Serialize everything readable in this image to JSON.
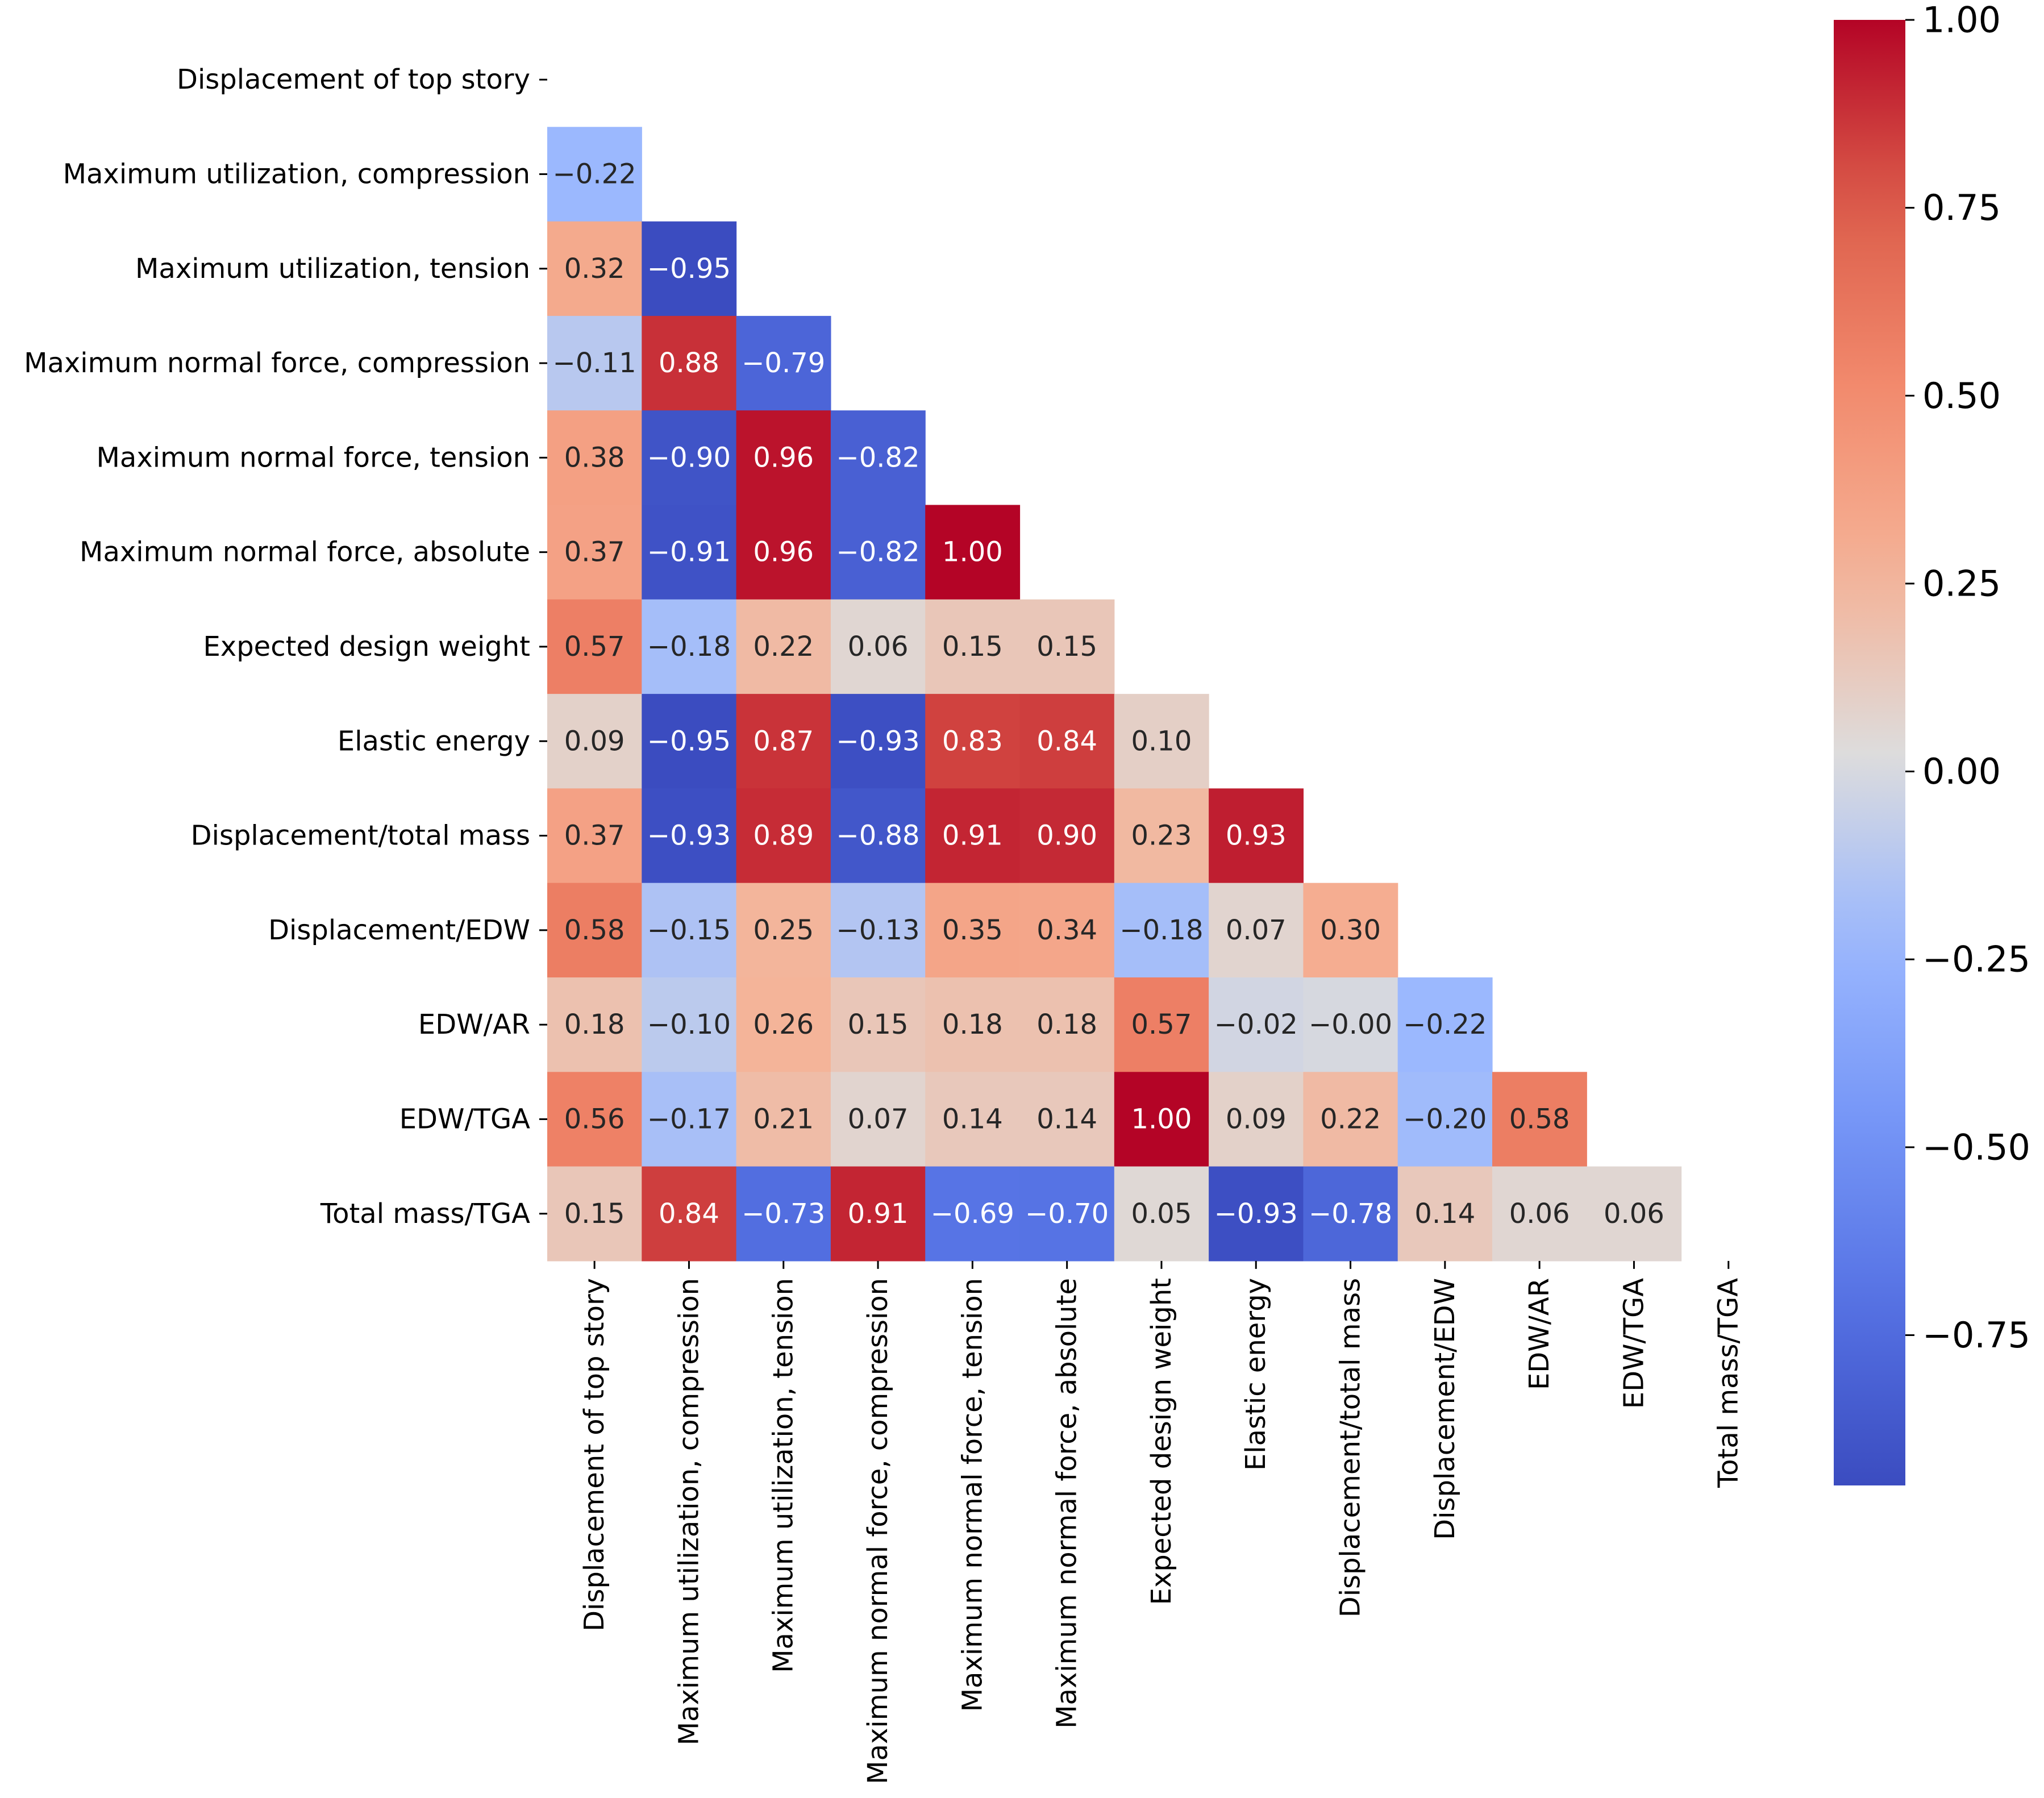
{
  "chart_data": {
    "type": "heatmap",
    "title": "",
    "variables": [
      "Displacement of top story",
      "Maximum utilization, compression",
      "Maximum utilization, tension",
      "Maximum normal force, compression",
      "Maximum normal force, tension",
      "Maximum normal force, absolute",
      "Expected design weight",
      "Elastic energy",
      "Displacement/total mass",
      "Displacement/EDW",
      "EDW/AR",
      "EDW/TGA",
      "Total mass/TGA"
    ],
    "lower_triangle": [
      [],
      [
        -0.22
      ],
      [
        0.32,
        -0.95
      ],
      [
        -0.11,
        0.88,
        -0.79
      ],
      [
        0.38,
        -0.9,
        0.96,
        -0.82
      ],
      [
        0.37,
        -0.91,
        0.96,
        -0.82,
        1.0
      ],
      [
        0.57,
        -0.18,
        0.22,
        0.06,
        0.15,
        0.15
      ],
      [
        0.09,
        -0.95,
        0.87,
        -0.93,
        0.83,
        0.84,
        0.1
      ],
      [
        0.37,
        -0.93,
        0.89,
        -0.88,
        0.91,
        0.9,
        0.23,
        0.93
      ],
      [
        0.58,
        -0.15,
        0.25,
        -0.13,
        0.35,
        0.34,
        -0.18,
        0.07,
        0.3
      ],
      [
        0.18,
        -0.1,
        0.26,
        0.15,
        0.18,
        0.18,
        0.57,
        -0.02,
        -0.0,
        -0.22
      ],
      [
        0.56,
        -0.17,
        0.21,
        0.07,
        0.14,
        0.14,
        1.0,
        0.09,
        0.22,
        -0.2,
        0.58
      ],
      [
        0.15,
        0.84,
        -0.73,
        0.91,
        -0.69,
        -0.7,
        0.05,
        -0.93,
        -0.78,
        0.14,
        0.06,
        0.06
      ]
    ],
    "mask": "upper triangle including diagonal",
    "colormap": "coolwarm",
    "value_range": [
      -0.95,
      1.0
    ],
    "colorbar": {
      "position": "right",
      "ticks": [
        1.0,
        0.75,
        0.5,
        0.25,
        0.0,
        -0.25,
        -0.5,
        -0.75
      ],
      "tick_labels": [
        "1.00",
        "0.75",
        "0.50",
        "0.25",
        "0.00",
        "−0.25",
        "−0.50",
        "−0.75"
      ]
    },
    "xlabel": "",
    "ylabel": ""
  }
}
